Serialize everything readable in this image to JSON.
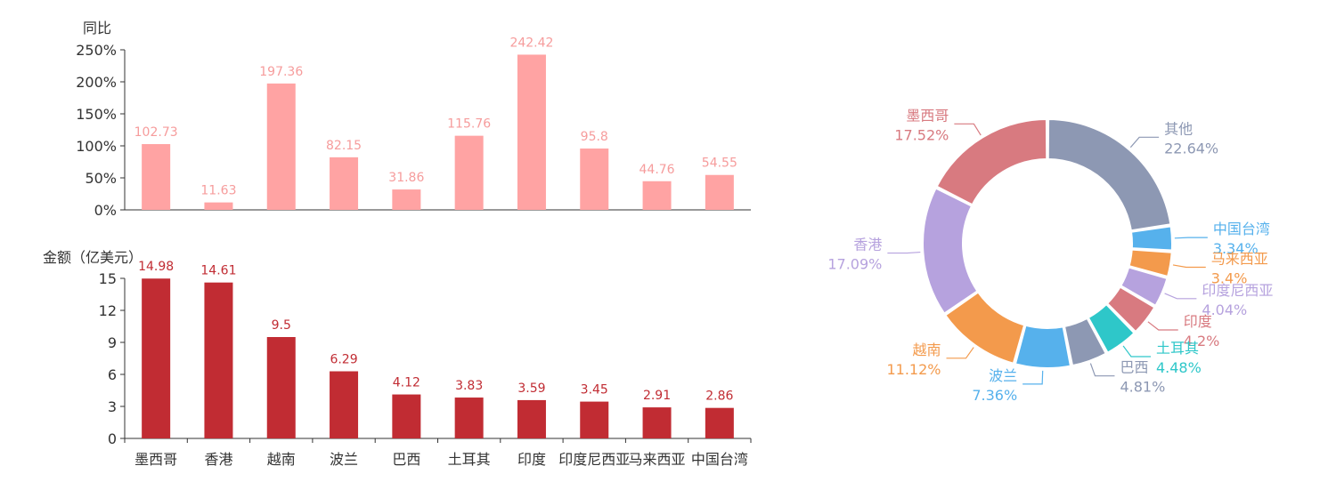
{
  "chart_data": [
    {
      "type": "bar",
      "ylabel": "同比",
      "categories": [
        "墨西哥",
        "香港",
        "越南",
        "波兰",
        "巴西",
        "土耳其",
        "印度",
        "印度尼西亚",
        "马来西亚",
        "中国台湾"
      ],
      "values": [
        102.73,
        11.63,
        197.36,
        82.15,
        31.86,
        115.76,
        242.42,
        95.8,
        44.76,
        54.55
      ],
      "value_labels": [
        "102.73",
        "11.63",
        "197.36",
        "82.15",
        "31.86",
        "115.76",
        "242.42",
        "95.8",
        "44.76",
        "54.55"
      ],
      "ylim": [
        0,
        250
      ],
      "yticks": [
        "0%",
        "50%",
        "100%",
        "150%",
        "200%",
        "250%"
      ],
      "color": "#ffa3a3",
      "label_color": "#f69c9c"
    },
    {
      "type": "bar",
      "ylabel": "金额（亿美元）",
      "categories": [
        "墨西哥",
        "香港",
        "越南",
        "波兰",
        "巴西",
        "土耳其",
        "印度",
        "印度尼西亚",
        "马来西亚",
        "中国台湾"
      ],
      "values": [
        14.98,
        14.61,
        9.5,
        6.29,
        4.12,
        3.83,
        3.59,
        3.45,
        2.91,
        2.86
      ],
      "value_labels": [
        "14.98",
        "14.61",
        "9.5",
        "6.29",
        "4.12",
        "3.83",
        "3.59",
        "3.45",
        "2.91",
        "2.86"
      ],
      "ylim": [
        0,
        15
      ],
      "yticks": [
        "0",
        "3",
        "6",
        "9",
        "12",
        "15"
      ],
      "color": "#c12c33",
      "label_color": "#c12c33"
    },
    {
      "type": "pie",
      "donut": true,
      "slices": [
        {
          "name": "其他",
          "percent": 22.64,
          "label": "22.64%",
          "color": "#8d98b3"
        },
        {
          "name": "中国台湾",
          "percent": 3.34,
          "label": "3.34%",
          "color": "#56b1ec"
        },
        {
          "name": "马来西亚",
          "percent": 3.4,
          "label": "3.4%",
          "color": "#f39a4c"
        },
        {
          "name": "印度尼西亚",
          "percent": 4.04,
          "label": "4.04%",
          "color": "#b6a2de"
        },
        {
          "name": "印度",
          "percent": 4.2,
          "label": "4.2%",
          "color": "#d87a80"
        },
        {
          "name": "土耳其",
          "percent": 4.48,
          "label": "4.48%",
          "color": "#2ec7c9"
        },
        {
          "name": "巴西",
          "percent": 4.81,
          "label": "4.81%",
          "color": "#8d98b3"
        },
        {
          "name": "波兰",
          "percent": 7.36,
          "label": "7.36%",
          "color": "#56b1ec"
        },
        {
          "name": "越南",
          "percent": 11.12,
          "label": "11.12%",
          "color": "#f39a4c"
        },
        {
          "name": "香港",
          "percent": 17.09,
          "label": "17.09%",
          "color": "#b6a2de"
        },
        {
          "name": "墨西哥",
          "percent": 17.52,
          "label": "17.52%",
          "color": "#d87a80"
        }
      ]
    }
  ]
}
